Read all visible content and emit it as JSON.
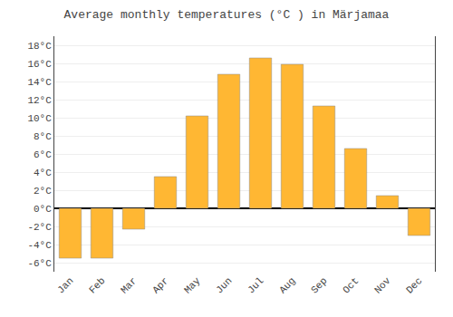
{
  "chart_data": {
    "type": "bar",
    "title": "Average monthly temperatures (°C ) in Märjamaa",
    "categories": [
      "Jan",
      "Feb",
      "Mar",
      "Apr",
      "May",
      "Jun",
      "Jul",
      "Aug",
      "Sep",
      "Oct",
      "Nov",
      "Dec"
    ],
    "values": [
      -5.5,
      -5.5,
      -2.3,
      3.5,
      10.2,
      14.8,
      16.6,
      15.9,
      11.3,
      6.6,
      1.4,
      -3.0
    ],
    "color": "#FFB733",
    "ylim": [
      -7,
      19
    ],
    "yticks": [
      {
        "value": -6,
        "label": "-6°C"
      },
      {
        "value": -4,
        "label": "-4°C"
      },
      {
        "value": -2,
        "label": "-2°C"
      },
      {
        "value": 0,
        "label": "0°C"
      },
      {
        "value": 2,
        "label": "2°C"
      },
      {
        "value": 4,
        "label": "4°C"
      },
      {
        "value": 6,
        "label": "6°C"
      },
      {
        "value": 8,
        "label": "8°C"
      },
      {
        "value": 10,
        "label": "10°C"
      },
      {
        "value": 12,
        "label": "12°C"
      },
      {
        "value": 14,
        "label": "14°C"
      },
      {
        "value": 16,
        "label": "16°C"
      },
      {
        "value": 18,
        "label": "18°C"
      }
    ],
    "grid": true
  }
}
